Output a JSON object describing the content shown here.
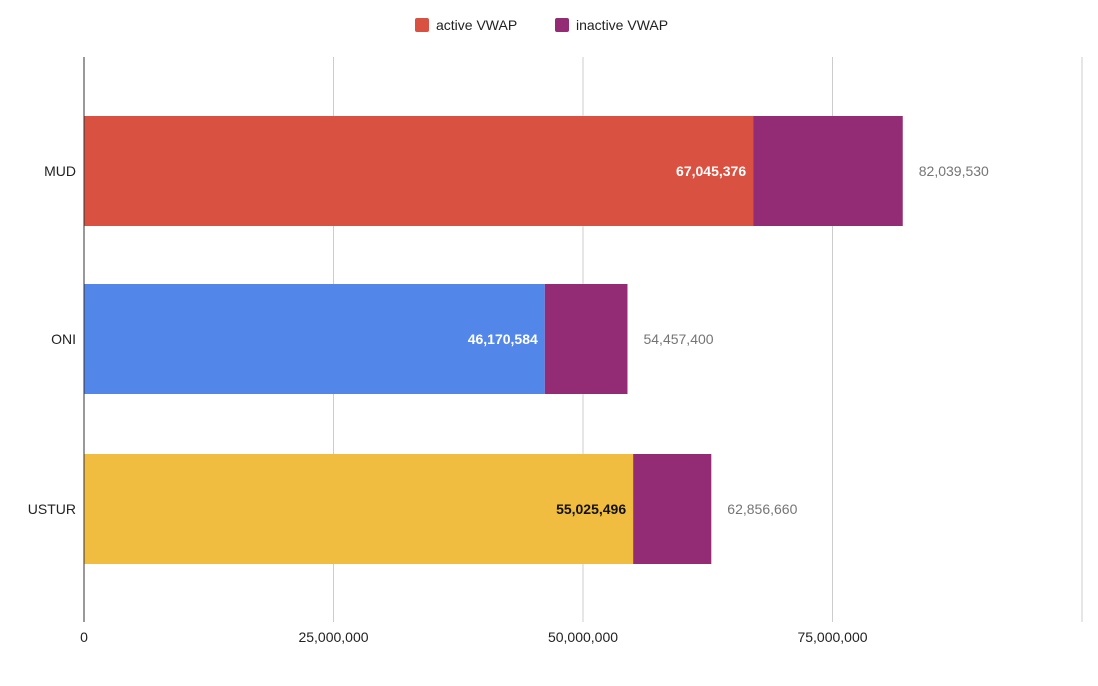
{
  "chart_data": {
    "type": "bar",
    "orientation": "horizontal",
    "stacked": true,
    "title": "",
    "xlabel": "",
    "ylabel": "",
    "categories": [
      "MUD",
      "ONI",
      "USTUR"
    ],
    "series": [
      {
        "name": "active VWAP",
        "values": [
          67045376,
          46170584,
          55025496
        ],
        "colors": [
          "#d95140",
          "#5286e8",
          "#f0bd41"
        ],
        "labels": [
          "67,045,376",
          "46,170,584",
          "55,025,496"
        ],
        "label_colors": [
          "#ffffff",
          "#ffffff",
          "#111111"
        ]
      },
      {
        "name": "inactive VWAP",
        "values": [
          14994154,
          8286816,
          7831164
        ],
        "color": "#932c74"
      }
    ],
    "totals": [
      "82,039,530",
      "54,457,400",
      "62,856,660"
    ],
    "total_values": [
      82039530,
      54457400,
      62856660
    ],
    "legend_position": "top",
    "legend_swatch_color": "#d95140",
    "xlim": [
      0,
      100000000
    ],
    "x_ticks": [
      0,
      25000000,
      50000000,
      75000000,
      100000000
    ],
    "x_tick_labels": [
      "0",
      "25,000,000",
      "50,000,000",
      "75,000,000",
      ""
    ],
    "grid": true
  }
}
